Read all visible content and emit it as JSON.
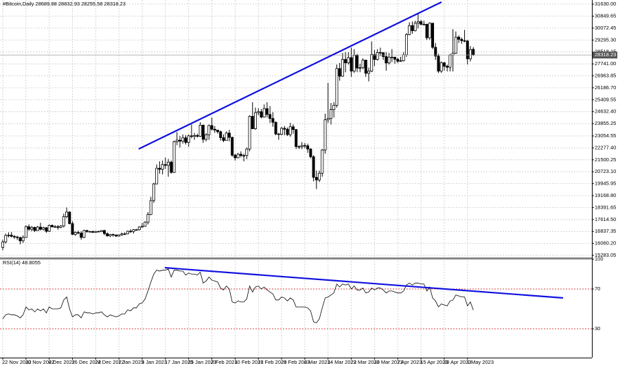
{
  "chart_data": {
    "type": "candlestick",
    "title": "#Bitcoin,Daily 28689.88 28832.93 28255.58 28318.23",
    "categories": [
      "22 Nov 2022",
      null,
      null,
      null,
      null,
      null,
      null,
      null,
      "30 Nov 2022",
      null,
      null,
      null,
      null,
      null,
      null,
      null,
      "8 Dec 2022",
      null,
      null,
      null,
      null,
      null,
      null,
      null,
      "16 Dec 2022",
      null,
      null,
      null,
      null,
      null,
      null,
      null,
      "24 Dec 2022",
      null,
      null,
      null,
      null,
      null,
      null,
      null,
      "1 Jan 2023",
      null,
      null,
      null,
      null,
      null,
      null,
      null,
      "9 Jan 2023",
      null,
      null,
      null,
      null,
      null,
      null,
      null,
      "17 Jan 2023",
      null,
      null,
      null,
      null,
      null,
      null,
      null,
      "25 Jan 2023",
      null,
      null,
      null,
      null,
      null,
      null,
      null,
      "2 Feb 2023",
      null,
      null,
      null,
      null,
      null,
      null,
      null,
      "10 Feb 2023",
      null,
      null,
      null,
      null,
      null,
      null,
      null,
      "18 Feb 2023",
      null,
      null,
      null,
      null,
      null,
      null,
      null,
      "26 Feb 2023",
      null,
      null,
      null,
      null,
      null,
      null,
      null,
      "6 Mar 2023",
      null,
      null,
      null,
      null,
      null,
      null,
      null,
      "14 Mar 2023",
      null,
      null,
      null,
      null,
      null,
      null,
      null,
      "22 Mar 2023",
      null,
      null,
      null,
      null,
      null,
      null,
      null,
      "30 Mar 2023",
      null,
      null,
      null,
      null,
      null,
      null,
      null,
      "7 Apr 2023",
      null,
      null,
      null,
      null,
      null,
      null,
      null,
      "15 Apr 2023",
      null,
      null,
      null,
      null,
      null,
      null,
      null,
      "23 Apr 2023",
      null,
      null,
      null,
      null,
      null,
      null,
      null,
      "1 May 2023",
      null,
      null
    ],
    "ohlc": [
      [
        15800,
        16300,
        15620,
        16150
      ],
      [
        16150,
        16700,
        16050,
        16580
      ],
      [
        16580,
        16780,
        16450,
        16600
      ],
      [
        16600,
        16800,
        16450,
        16520
      ],
      [
        16520,
        16600,
        16350,
        16480
      ],
      [
        16480,
        16560,
        16280,
        16440
      ],
      [
        16440,
        16500,
        16000,
        16230
      ],
      [
        16230,
        16580,
        16100,
        16450
      ],
      [
        16450,
        17250,
        16420,
        17150
      ],
      [
        17150,
        17300,
        16880,
        16980
      ],
      [
        16980,
        17200,
        16850,
        17100
      ],
      [
        17100,
        17150,
        16800,
        16900
      ],
      [
        16900,
        17200,
        16870,
        17120
      ],
      [
        17120,
        17400,
        16900,
        16980
      ],
      [
        16980,
        17150,
        16900,
        17080
      ],
      [
        17080,
        17120,
        16750,
        16850
      ],
      [
        16850,
        17300,
        16800,
        17230
      ],
      [
        17230,
        17300,
        17100,
        17140
      ],
      [
        17140,
        17250,
        17080,
        17150
      ],
      [
        17150,
        17250,
        16950,
        17100
      ],
      [
        17100,
        17250,
        17050,
        17200
      ],
      [
        17200,
        18000,
        17100,
        17800
      ],
      [
        17800,
        18400,
        17700,
        18100
      ],
      [
        18100,
        18150,
        17300,
        17350
      ],
      [
        17350,
        17500,
        16600,
        16650
      ],
      [
        16650,
        16850,
        16550,
        16770
      ],
      [
        16770,
        16900,
        16650,
        16730
      ],
      [
        16730,
        16850,
        16300,
        16450
      ],
      [
        16450,
        16950,
        16400,
        16900
      ],
      [
        16900,
        16950,
        16750,
        16830
      ],
      [
        16830,
        16880,
        16780,
        16830
      ],
      [
        16830,
        16900,
        16750,
        16780
      ],
      [
        16780,
        16880,
        16750,
        16840
      ],
      [
        16840,
        16880,
        16790,
        16830
      ],
      [
        16830,
        16920,
        16800,
        16900
      ],
      [
        16900,
        16950,
        16600,
        16700
      ],
      [
        16700,
        16770,
        16500,
        16550
      ],
      [
        16550,
        16680,
        16480,
        16640
      ],
      [
        16640,
        16700,
        16500,
        16610
      ],
      [
        16610,
        16640,
        16480,
        16540
      ],
      [
        16540,
        16640,
        16500,
        16620
      ],
      [
        16620,
        16760,
        16550,
        16680
      ],
      [
        16680,
        16780,
        16600,
        16680
      ],
      [
        16680,
        16900,
        16660,
        16850
      ],
      [
        16850,
        16980,
        16750,
        16830
      ],
      [
        16830,
        16990,
        16700,
        16950
      ],
      [
        16950,
        17000,
        16900,
        16950
      ],
      [
        16950,
        17180,
        16900,
        17120
      ],
      [
        17120,
        17400,
        17080,
        17180
      ],
      [
        17180,
        17500,
        17150,
        17440
      ],
      [
        17440,
        18100,
        17300,
        17940
      ],
      [
        17940,
        19100,
        17900,
        18850
      ],
      [
        18850,
        20000,
        18700,
        19930
      ],
      [
        19930,
        21200,
        19900,
        20950
      ],
      [
        20950,
        21400,
        20600,
        20880
      ],
      [
        20880,
        21450,
        20550,
        21190
      ],
      [
        21190,
        21650,
        20900,
        21140
      ],
      [
        21140,
        21550,
        20400,
        21350
      ],
      [
        21350,
        21450,
        20600,
        20680
      ],
      [
        20680,
        22750,
        20650,
        22680
      ],
      [
        22680,
        23300,
        22450,
        22780
      ],
      [
        22780,
        23050,
        22300,
        22710
      ],
      [
        22710,
        23150,
        22550,
        22930
      ],
      [
        22930,
        23100,
        22500,
        22630
      ],
      [
        22630,
        23150,
        22350,
        23060
      ],
      [
        23060,
        23800,
        22900,
        23020
      ],
      [
        23020,
        23250,
        22800,
        23080
      ],
      [
        23080,
        23200,
        22950,
        23030
      ],
      [
        23030,
        23950,
        22980,
        23750
      ],
      [
        23750,
        23800,
        22600,
        22830
      ],
      [
        22830,
        23250,
        22700,
        23130
      ],
      [
        23130,
        23800,
        22800,
        23730
      ],
      [
        23730,
        24250,
        23400,
        23490
      ],
      [
        23490,
        23700,
        23250,
        23430
      ],
      [
        23430,
        23450,
        23200,
        23330
      ],
      [
        23330,
        23400,
        22750,
        22940
      ],
      [
        22940,
        23150,
        22650,
        22760
      ],
      [
        22760,
        23350,
        22750,
        23240
      ],
      [
        23240,
        23450,
        22700,
        22960
      ],
      [
        22960,
        23000,
        21700,
        21800
      ],
      [
        21800,
        21900,
        21450,
        21630
      ],
      [
        21630,
        21950,
        21600,
        21860
      ],
      [
        21860,
        22050,
        21650,
        21780
      ],
      [
        21780,
        21900,
        21400,
        21780
      ],
      [
        21780,
        22300,
        21550,
        22200
      ],
      [
        22200,
        24400,
        22050,
        24330
      ],
      [
        24330,
        25250,
        23500,
        23520
      ],
      [
        23520,
        24900,
        23450,
        24570
      ],
      [
        24570,
        24850,
        24400,
        24630
      ],
      [
        24630,
        24800,
        24200,
        24280
      ],
      [
        24280,
        25100,
        24250,
        24830
      ],
      [
        24830,
        25250,
        24250,
        24450
      ],
      [
        24450,
        25000,
        23900,
        24190
      ],
      [
        24190,
        24600,
        23650,
        23940
      ],
      [
        23940,
        24000,
        23100,
        23180
      ],
      [
        23180,
        23250,
        22800,
        23160
      ],
      [
        23160,
        23650,
        23100,
        23550
      ],
      [
        23550,
        23700,
        23100,
        23490
      ],
      [
        23490,
        23600,
        23050,
        23140
      ],
      [
        23140,
        23900,
        23000,
        23650
      ],
      [
        23650,
        23800,
        23200,
        23470
      ],
      [
        23470,
        23500,
        22200,
        22360
      ],
      [
        22360,
        22450,
        22200,
        22350
      ],
      [
        22350,
        22650,
        22200,
        22430
      ],
      [
        22430,
        22600,
        22250,
        22410
      ],
      [
        22410,
        22550,
        21950,
        22200
      ],
      [
        22200,
        22250,
        21600,
        21700
      ],
      [
        21700,
        21800,
        20100,
        20360
      ],
      [
        20360,
        20800,
        19600,
        20190
      ],
      [
        20190,
        20800,
        20050,
        20630
      ],
      [
        20630,
        22200,
        20400,
        22140
      ],
      [
        22140,
        24500,
        21900,
        24100
      ],
      [
        24100,
        26500,
        23900,
        24190
      ],
      [
        24190,
        25200,
        23800,
        24770
      ],
      [
        24770,
        25250,
        24250,
        25050
      ],
      [
        25050,
        27700,
        24900,
        27440
      ],
      [
        27440,
        27800,
        26650,
        26940
      ],
      [
        26940,
        28450,
        26900,
        28030
      ],
      [
        28030,
        28500,
        27200,
        27810
      ],
      [
        27810,
        28500,
        27700,
        28150
      ],
      [
        28150,
        28800,
        26900,
        27270
      ],
      [
        27270,
        28700,
        27150,
        28300
      ],
      [
        28300,
        28400,
        27200,
        27470
      ],
      [
        27470,
        27750,
        27200,
        27490
      ],
      [
        27490,
        28100,
        27400,
        27990
      ],
      [
        27990,
        28000,
        26900,
        27130
      ],
      [
        27130,
        27500,
        26600,
        27270
      ],
      [
        27270,
        29200,
        27200,
        28350
      ],
      [
        28350,
        28650,
        27600,
        28030
      ],
      [
        28030,
        28700,
        27950,
        28480
      ],
      [
        28480,
        28800,
        28250,
        28470
      ],
      [
        28470,
        28500,
        28000,
        28220
      ],
      [
        28220,
        28500,
        27300,
        27800
      ],
      [
        27800,
        28450,
        27700,
        28180
      ],
      [
        28180,
        28700,
        27850,
        28180
      ],
      [
        28180,
        28200,
        27750,
        28040
      ],
      [
        28040,
        28150,
        27800,
        27910
      ],
      [
        27910,
        28200,
        27880,
        27950
      ],
      [
        27950,
        28500,
        27900,
        28330
      ],
      [
        28330,
        29750,
        28200,
        29650
      ],
      [
        29650,
        30450,
        29600,
        30230
      ],
      [
        30230,
        30500,
        29700,
        29900
      ],
      [
        29900,
        30550,
        29850,
        30390
      ],
      [
        30390,
        31000,
        30050,
        30490
      ],
      [
        30490,
        30600,
        30250,
        30320
      ],
      [
        30320,
        30550,
        30250,
        30320
      ],
      [
        30320,
        30350,
        29300,
        29440
      ],
      [
        29440,
        30450,
        29300,
        30390
      ],
      [
        30390,
        30400,
        28700,
        28820
      ],
      [
        28820,
        29100,
        28000,
        28250
      ],
      [
        28250,
        28400,
        27150,
        27270
      ],
      [
        27270,
        27900,
        27150,
        27820
      ],
      [
        27820,
        27850,
        27300,
        27590
      ],
      [
        27590,
        27700,
        27250,
        27520
      ],
      [
        27520,
        28400,
        27250,
        28310
      ],
      [
        28310,
        30000,
        27250,
        28430
      ],
      [
        28430,
        29850,
        28400,
        29480
      ],
      [
        29480,
        29600,
        29100,
        29340
      ],
      [
        29340,
        29450,
        29050,
        29250
      ],
      [
        29250,
        29950,
        29150,
        29230
      ],
      [
        29230,
        29300,
        27700,
        28068
      ],
      [
        28068,
        28900,
        27900,
        28670
      ],
      [
        28689.88,
        28832.93,
        28255.58,
        28318.23
      ]
    ],
    "up_color": "#ffffff",
    "down_color": "#000000",
    "ylim": [
      15283.05,
      31630
    ],
    "yticks": [
      {
        "value": 31630,
        "label": "31630.00"
      },
      30849.65,
      30072.45,
      {
        "value": 29295.3,
        "label": "29295.30"
      },
      28518.15,
      {
        "value": 27741,
        "label": "27741.00"
      },
      26963.85,
      {
        "value": 26186.7,
        "label": "26186.70"
      },
      25409.55,
      {
        "value": 24632.4,
        "label": "24632.40"
      },
      23855.25,
      23054.55,
      {
        "value": 22277.4,
        "label": "22277.40"
      },
      21500.25,
      {
        "value": 20723.1,
        "label": "20723.10"
      },
      19945.95,
      {
        "value": 19168.8,
        "label": "19168.80"
      },
      18391.65,
      {
        "value": 17614.5,
        "label": "17614.50"
      },
      16837.35,
      {
        "value": 16060.2,
        "label": "16060.20"
      },
      15283.05
    ],
    "grid": true,
    "rsi": {
      "type": "line",
      "label": "RSI(14) 48.8055",
      "color": "#000000",
      "level_color": "#d00000",
      "ylim": [
        0,
        100
      ],
      "yticks": [
        100,
        70,
        30
      ],
      "values": [
        40,
        44,
        45,
        44,
        44,
        43,
        41,
        44,
        52,
        49,
        50,
        47,
        50,
        48,
        50,
        46,
        52,
        50,
        50,
        50,
        51,
        59,
        62,
        50,
        42,
        44,
        44,
        41,
        47,
        46,
        46,
        45,
        46,
        46,
        47,
        44,
        42,
        44,
        43,
        42,
        43,
        45,
        45,
        49,
        48,
        51,
        51,
        55,
        56,
        60,
        68,
        77,
        85,
        89,
        88,
        89,
        89,
        90,
        82,
        89,
        89,
        88,
        88,
        84,
        86,
        85,
        85,
        84,
        87,
        76,
        78,
        82,
        79,
        78,
        77,
        71,
        69,
        73,
        70,
        57,
        56,
        58,
        57,
        57,
        60,
        73,
        67,
        72,
        73,
        70,
        72,
        69,
        67,
        65,
        59,
        59,
        62,
        61,
        58,
        61,
        59,
        52,
        52,
        52,
        52,
        51,
        48,
        37,
        36,
        40,
        51,
        61,
        62,
        64,
        66,
        75,
        72,
        75,
        74,
        75,
        70,
        73,
        69,
        69,
        71,
        66,
        67,
        71,
        69,
        71,
        71,
        69,
        66,
        68,
        68,
        67,
        66,
        66,
        68,
        74,
        76,
        74,
        76,
        76,
        75,
        75,
        68,
        72,
        61,
        58,
        52,
        55,
        54,
        53,
        58,
        59,
        64,
        63,
        62,
        62,
        53,
        57,
        48.8055
      ]
    }
  }
}
